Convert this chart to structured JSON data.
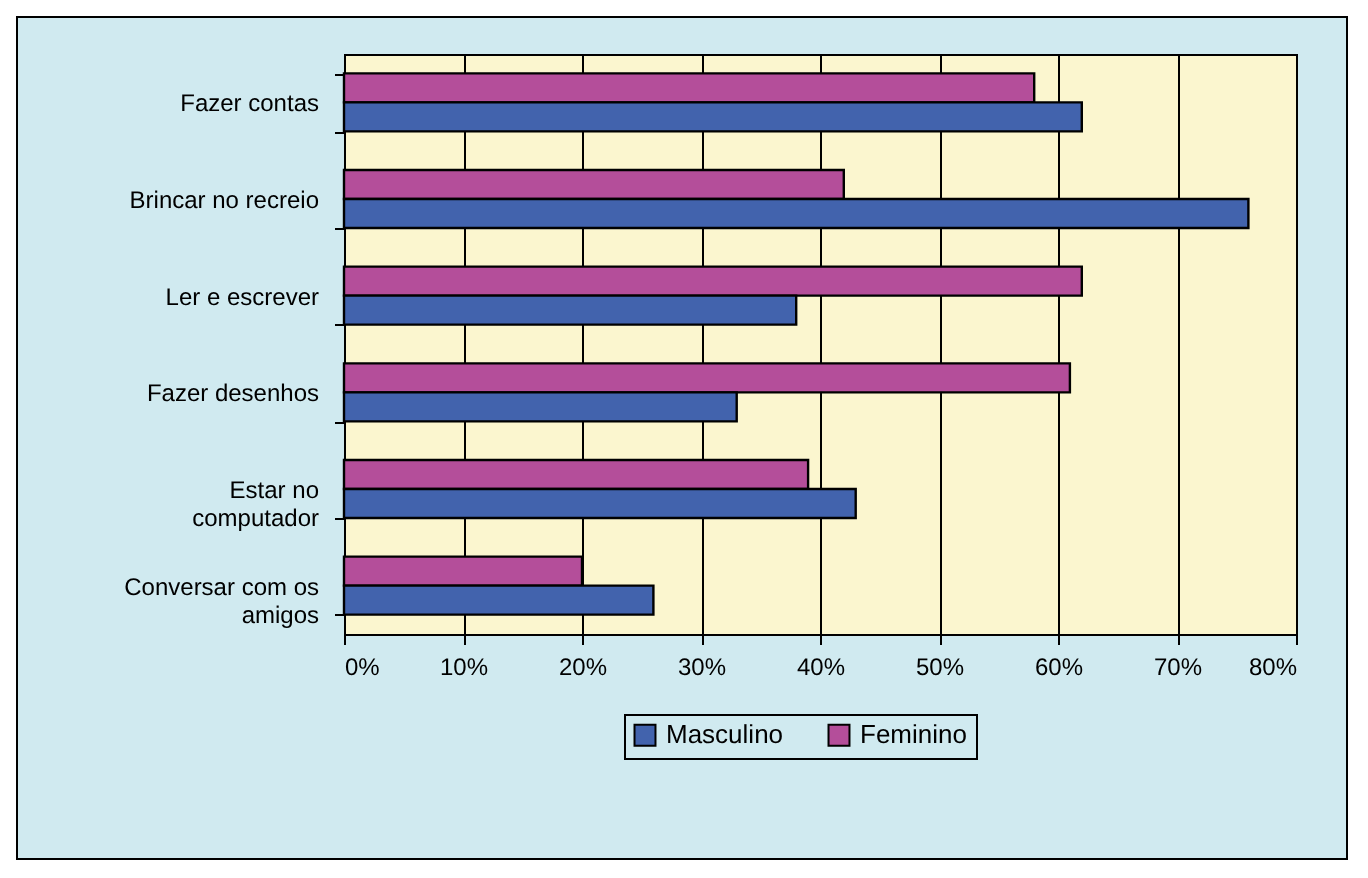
{
  "chart_data": {
    "type": "bar",
    "orientation": "horizontal",
    "categories": [
      "Fazer contas",
      "Brincar no recreio",
      "Ler e escrever",
      "Fazer desenhos",
      "Estar no computador",
      "Conversar com os amigos"
    ],
    "series": [
      {
        "name": "Feminino",
        "color": "#b44e9a",
        "values": [
          58,
          42,
          62,
          61,
          39,
          20
        ]
      },
      {
        "name": "Masculino",
        "color": "#4263ad",
        "values": [
          62,
          76,
          38,
          33,
          43,
          26
        ]
      }
    ],
    "xlim": [
      0,
      80
    ],
    "xticks": [
      {
        "value": 0,
        "label": "0%"
      },
      {
        "value": 10,
        "label": "10%"
      },
      {
        "value": 20,
        "label": "20%"
      },
      {
        "value": 30,
        "label": "30%"
      },
      {
        "value": 40,
        "label": "40%"
      },
      {
        "value": 50,
        "label": "50%"
      },
      {
        "value": 60,
        "label": "60%"
      },
      {
        "value": 70,
        "label": "70%"
      },
      {
        "value": 80,
        "label": "80%"
      }
    ],
    "grid": "x",
    "legend": "bottom"
  }
}
